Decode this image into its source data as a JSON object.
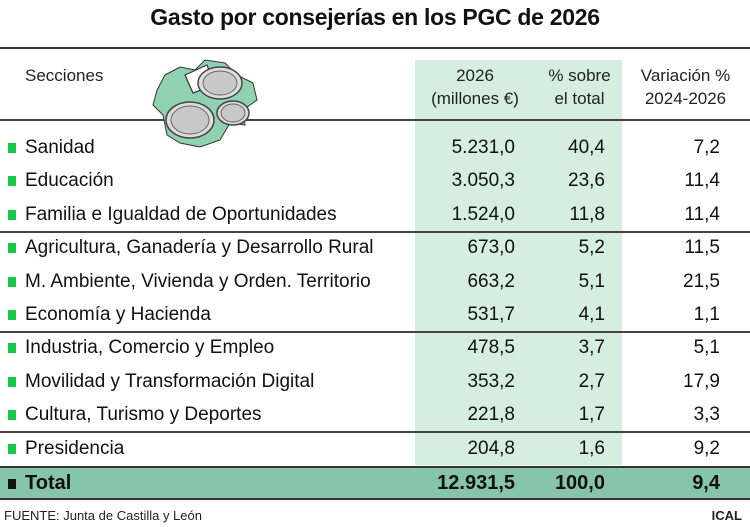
{
  "title": "Gasto por consejerías en los PGC de 2026",
  "chart_data": {
    "type": "table",
    "title": "Gasto por consejerías en los PGC de 2026",
    "columns": [
      "Secciones",
      "2026 (millones €)",
      "% sobre el total",
      "Variación % 2024-2026"
    ],
    "rows": [
      {
        "section": "Sanidad",
        "amount": "5.231,0",
        "share": "40,4",
        "variation": "7,2"
      },
      {
        "section": "Educación",
        "amount": "3.050,3",
        "share": "23,6",
        "variation": "11,4"
      },
      {
        "section": "Familia e Igualdad de Oportunidades",
        "amount": "1.524,0",
        "share": "11,8",
        "variation": "11,4"
      },
      {
        "section": "Agricultura, Ganadería y Desarrollo Rural",
        "amount": "673,0",
        "share": "5,2",
        "variation": "11,5"
      },
      {
        "section": "M. Ambiente, Vivienda y Orden. Territorio",
        "amount": "663,2",
        "share": "5,1",
        "variation": "21,5"
      },
      {
        "section": "Economía y Hacienda",
        "amount": "531,7",
        "share": "4,1",
        "variation": "1,1"
      },
      {
        "section": "Industria, Comercio y Empleo",
        "amount": "478,5",
        "share": "3,7",
        "variation": "5,1"
      },
      {
        "section": "Movilidad y Transformación Digital",
        "amount": "353,2",
        "share": "2,7",
        "variation": "17,9"
      },
      {
        "section": "Cultura, Turismo y Deportes",
        "amount": "221,8",
        "share": "1,7",
        "variation": "3,3"
      },
      {
        "section": "Presidencia",
        "amount": "204,8",
        "share": "1,6",
        "variation": "9,2"
      }
    ],
    "total": {
      "section": "Total",
      "amount": "12.931,5",
      "share": "100,0",
      "variation": "9,4"
    }
  },
  "headers": {
    "sections": "Secciones",
    "amount_1": "2026",
    "amount_2": "(millones €)",
    "share_1": "% sobre",
    "share_2": "el total",
    "variation_1": "Variación %",
    "variation_2": "2024-2026"
  },
  "footer": {
    "source": "FUENTE: Junta de Castilla y León",
    "credit": "ICAL"
  },
  "colors": {
    "bullet": "#17c94a",
    "column_shade": "#d6eede",
    "total_band": "#86c5a9",
    "map": "#8fd1b0"
  },
  "icons": [
    "castilla-y-leon-map-with-euro-coins"
  ]
}
